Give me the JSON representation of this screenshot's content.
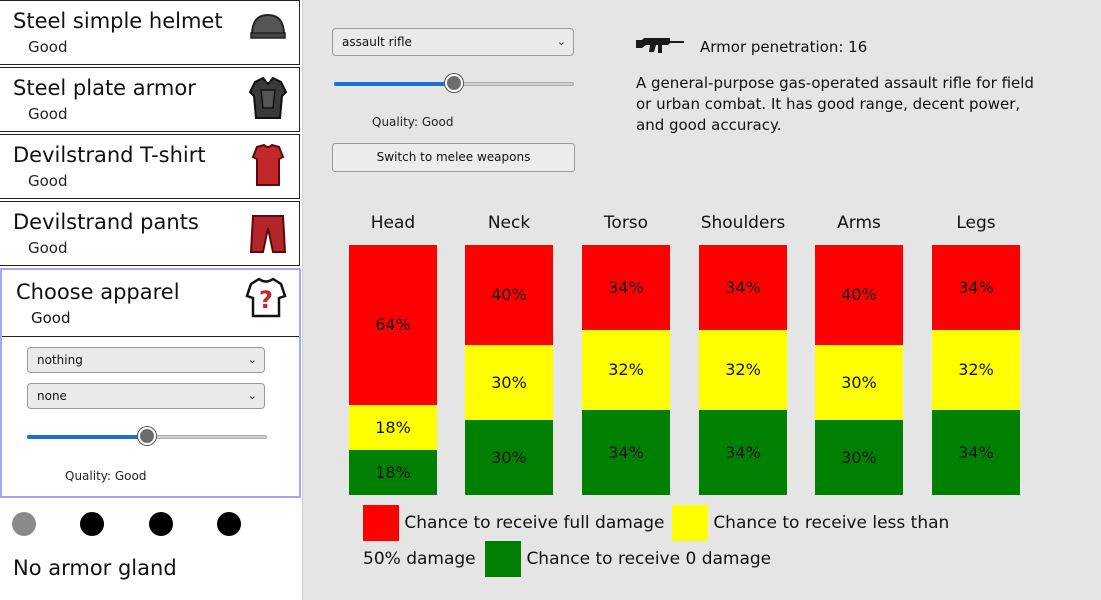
{
  "sidebar": {
    "items": [
      {
        "name": "Steel simple helmet",
        "quality": "Good",
        "icon": "helmet-icon"
      },
      {
        "name": "Steel plate armor",
        "quality": "Good",
        "icon": "plate-armor-icon"
      },
      {
        "name": "Devilstrand T-shirt",
        "quality": "Good",
        "icon": "tshirt-icon"
      },
      {
        "name": "Devilstrand pants",
        "quality": "Good",
        "icon": "pants-icon"
      }
    ],
    "choose": {
      "name": "Choose apparel",
      "quality": "Good",
      "icon": "unknown-apparel-icon",
      "material_select": "nothing",
      "second_select": "none",
      "quality_level": 0.5,
      "quality_label": "Quality: Good"
    },
    "dots": [
      "#8a8a8a",
      "#000000",
      "#000000",
      "#000000"
    ],
    "gland_label": "No armor gland"
  },
  "weapon": {
    "select": "assault rifle",
    "quality_level": 0.5,
    "quality_label": "Quality: Good",
    "switch_label": "Switch to melee weapons",
    "icon": "assault-rifle-icon",
    "penetration": "Armor penetration: 16",
    "description": "A general-purpose gas-operated assault rifle for field or urban combat. It has good range, decent power, and good accuracy."
  },
  "colors": {
    "full": "#ff0000",
    "partial": "#ffff00",
    "none": "#008000"
  },
  "body_parts": [
    {
      "name": "Head",
      "full": "64%",
      "partial": "18%",
      "none": "18%"
    },
    {
      "name": "Neck",
      "full": "40%",
      "partial": "30%",
      "none": "30%"
    },
    {
      "name": "Torso",
      "full": "34%",
      "partial": "32%",
      "none": "34%"
    },
    {
      "name": "Shoulders",
      "full": "34%",
      "partial": "32%",
      "none": "34%"
    },
    {
      "name": "Arms",
      "full": "40%",
      "partial": "30%",
      "none": "30%"
    },
    {
      "name": "Legs",
      "full": "34%",
      "partial": "32%",
      "none": "34%"
    }
  ],
  "legend": {
    "full": "Chance to receive full damage",
    "partial": "Chance to receive less than 50% damage",
    "none": "Chance to receive 0 damage"
  }
}
